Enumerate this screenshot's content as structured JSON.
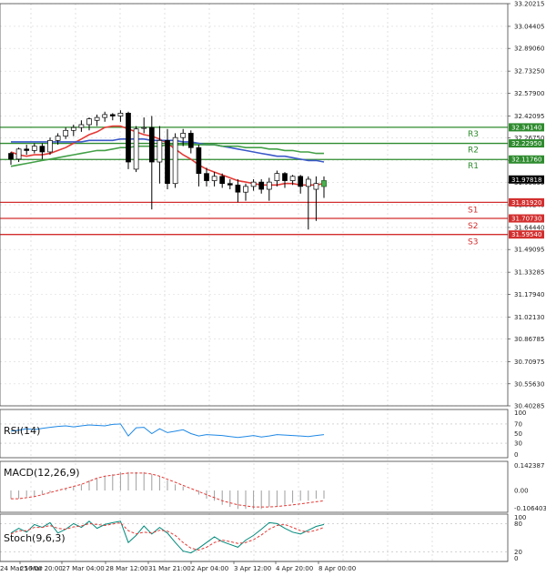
{
  "chart_data": {
    "type": "candlestick",
    "main": {
      "y_ticks": [
        "33.20215",
        "33.04405",
        "32.89060",
        "32.73250",
        "32.57900",
        "32.42095",
        "32.26750",
        "32.11240",
        "31.95895",
        "31.80240",
        "31.64440",
        "31.49095",
        "31.33285",
        "31.17940",
        "31.02130",
        "30.86785",
        "30.70975",
        "30.55630",
        "30.40285"
      ],
      "ylim": [
        30.40285,
        33.20215
      ],
      "x_labels": [
        "24 Mar 16:00",
        "25 Mar 20:00",
        "27 Mar 04:00",
        "28 Mar 12:00",
        "31 Mar 21:00",
        "2 Apr 04:00",
        "3 Apr 12:00",
        "4 Apr 20:00",
        "8 Apr 00:00"
      ],
      "current_price": "31.97818",
      "candles": [
        [
          32.16,
          32.17,
          32.08,
          32.12
        ],
        [
          32.12,
          32.2,
          32.1,
          32.19
        ],
        [
          32.19,
          32.22,
          32.15,
          32.18
        ],
        [
          32.18,
          32.23,
          32.16,
          32.21
        ],
        [
          32.21,
          32.23,
          32.12,
          32.17
        ],
        [
          32.17,
          32.27,
          32.15,
          32.25
        ],
        [
          32.25,
          32.3,
          32.22,
          32.28
        ],
        [
          32.28,
          32.34,
          32.26,
          32.32
        ],
        [
          32.32,
          32.36,
          32.28,
          32.34
        ],
        [
          32.34,
          32.39,
          32.31,
          32.36
        ],
        [
          32.36,
          32.41,
          32.32,
          32.4
        ],
        [
          32.39,
          32.43,
          32.35,
          32.41
        ],
        [
          32.41,
          32.45,
          32.38,
          32.43
        ],
        [
          32.43,
          32.44,
          32.39,
          32.42
        ],
        [
          32.42,
          32.46,
          32.38,
          32.44
        ],
        [
          32.44,
          32.45,
          32.05,
          32.1
        ],
        [
          32.05,
          32.35,
          32.03,
          32.33
        ],
        [
          32.34,
          32.41,
          32.3,
          32.34
        ],
        [
          32.34,
          32.42,
          31.77,
          32.1
        ],
        [
          32.1,
          32.35,
          31.95,
          32.25
        ],
        [
          32.25,
          32.33,
          31.91,
          31.95
        ],
        [
          31.95,
          32.3,
          31.92,
          32.27
        ],
        [
          32.27,
          32.33,
          32.21,
          32.3
        ],
        [
          32.3,
          32.32,
          32.16,
          32.2
        ],
        [
          32.2,
          32.22,
          31.93,
          32.02
        ],
        [
          32.02,
          32.06,
          31.93,
          31.97
        ],
        [
          31.97,
          32.03,
          31.93,
          32.0
        ],
        [
          32.0,
          32.02,
          31.92,
          31.95
        ],
        [
          31.95,
          31.98,
          31.91,
          31.94
        ],
        [
          31.94,
          31.98,
          31.82,
          31.89
        ],
        [
          31.89,
          31.95,
          31.83,
          31.93
        ],
        [
          31.93,
          31.98,
          31.9,
          31.96
        ],
        [
          31.96,
          31.98,
          31.88,
          31.91
        ],
        [
          31.91,
          31.99,
          31.83,
          31.96
        ],
        [
          31.97,
          32.04,
          31.93,
          32.02
        ],
        [
          32.02,
          32.03,
          31.92,
          31.97
        ],
        [
          31.97,
          32.01,
          31.94,
          32.0
        ],
        [
          32.0,
          32.01,
          31.88,
          31.93
        ],
        [
          31.93,
          32.0,
          31.63,
          31.98
        ],
        [
          31.91,
          32.0,
          31.69,
          31.95
        ],
        [
          31.93,
          32.0,
          31.85,
          31.97
        ]
      ],
      "moving_averages": [
        {
          "name": "red",
          "color": "#e53935",
          "values": [
            32.17,
            32.15,
            32.14,
            32.15,
            32.15,
            32.16,
            32.18,
            32.2,
            32.23,
            32.26,
            32.29,
            32.31,
            32.34,
            32.35,
            32.35,
            32.33,
            32.31,
            32.29,
            32.28,
            32.26,
            32.23,
            32.19,
            32.15,
            32.12,
            32.08,
            32.05,
            32.03,
            32.01,
            31.99,
            31.97,
            31.96,
            31.95,
            31.94,
            31.94,
            31.94,
            31.95,
            31.95,
            31.94,
            31.94,
            31.94,
            31.95
          ]
        },
        {
          "name": "blue",
          "color": "#3b59c9",
          "values": [
            32.24,
            32.24,
            32.24,
            32.24,
            32.24,
            32.24,
            32.24,
            32.24,
            32.24,
            32.24,
            32.25,
            32.25,
            32.25,
            32.25,
            32.26,
            32.26,
            32.26,
            32.26,
            32.25,
            32.25,
            32.25,
            32.25,
            32.24,
            32.24,
            32.23,
            32.22,
            32.22,
            32.21,
            32.2,
            32.19,
            32.18,
            32.17,
            32.16,
            32.15,
            32.14,
            32.14,
            32.13,
            32.12,
            32.11,
            32.11,
            32.1
          ]
        },
        {
          "name": "green",
          "color": "#43a047",
          "values": [
            32.07,
            32.08,
            32.09,
            32.1,
            32.11,
            32.12,
            32.13,
            32.14,
            32.15,
            32.16,
            32.17,
            32.18,
            32.18,
            32.19,
            32.2,
            32.2,
            32.21,
            32.21,
            32.21,
            32.21,
            32.22,
            32.22,
            32.22,
            32.22,
            32.22,
            32.22,
            32.22,
            32.21,
            32.21,
            32.21,
            32.2,
            32.2,
            32.2,
            32.19,
            32.19,
            32.18,
            32.18,
            32.17,
            32.17,
            32.16,
            32.16
          ]
        }
      ],
      "levels": [
        {
          "name": "R3",
          "value": "32.34140",
          "v": 32.3414,
          "color": "#2e8b2e"
        },
        {
          "name": "R2",
          "value": "32.22950",
          "v": 32.2295,
          "color": "#2e8b2e"
        },
        {
          "name": "R1",
          "value": "32.11760",
          "v": 32.1176,
          "color": "#2e8b2e"
        },
        {
          "name": "S1",
          "value": "31.81920",
          "v": 31.8192,
          "color": "#d32f2f"
        },
        {
          "name": "S2",
          "value": "31.70730",
          "v": 31.7073,
          "color": "#d32f2f"
        },
        {
          "name": "S3",
          "value": "31.59540",
          "v": 31.5954,
          "color": "#d32f2f"
        }
      ]
    },
    "rsi": {
      "title": "RSI(14)",
      "y_ticks": [
        "100",
        "70",
        "50",
        "30",
        "0"
      ],
      "values": [
        55,
        57,
        60,
        58,
        61,
        63,
        65,
        66,
        64,
        66,
        68,
        67,
        66,
        69,
        70,
        45,
        62,
        63,
        50,
        60,
        52,
        55,
        58,
        50,
        45,
        48,
        47,
        46,
        44,
        42,
        44,
        46,
        43,
        45,
        48,
        47,
        46,
        45,
        44,
        46,
        48
      ]
    },
    "macd": {
      "title": "MACD(12,26,9)",
      "y_ticks": [
        "0.142387",
        "0.00",
        "-0.106403"
      ],
      "hist": [
        -0.04,
        -0.04,
        -0.03,
        -0.03,
        -0.02,
        -0.01,
        0.0,
        0.01,
        0.02,
        0.03,
        0.05,
        0.06,
        0.07,
        0.08,
        0.09,
        0.09,
        0.09,
        0.09,
        0.08,
        0.07,
        0.05,
        0.03,
        0.02,
        0.0,
        -0.02,
        -0.04,
        -0.05,
        -0.07,
        -0.08,
        -0.09,
        -0.09,
        -0.09,
        -0.09,
        -0.08,
        -0.08,
        -0.07,
        -0.06,
        -0.05,
        -0.05,
        -0.04,
        -0.04
      ],
      "signal": [
        -0.04,
        -0.04,
        -0.035,
        -0.03,
        -0.02,
        -0.01,
        0.0,
        0.01,
        0.02,
        0.03,
        0.045,
        0.06,
        0.07,
        0.075,
        0.08,
        0.085,
        0.085,
        0.085,
        0.08,
        0.07,
        0.055,
        0.04,
        0.025,
        0.01,
        -0.005,
        -0.02,
        -0.035,
        -0.05,
        -0.06,
        -0.07,
        -0.075,
        -0.08,
        -0.08,
        -0.08,
        -0.078,
        -0.074,
        -0.07,
        -0.065,
        -0.06,
        -0.055,
        -0.05
      ]
    },
    "stoch": {
      "title": "Stoch(9,6,3)",
      "y_ticks": [
        "100",
        "80",
        "20",
        "0"
      ],
      "main": [
        60,
        70,
        62,
        78,
        72,
        82,
        60,
        68,
        80,
        72,
        85,
        70,
        78,
        82,
        85,
        40,
        55,
        75,
        58,
        72,
        60,
        40,
        22,
        18,
        28,
        40,
        52,
        42,
        36,
        30,
        45,
        55,
        68,
        82,
        80,
        70,
        62,
        58,
        66,
        74,
        78
      ],
      "signal": [
        58,
        65,
        65,
        72,
        72,
        76,
        70,
        68,
        73,
        75,
        80,
        78,
        76,
        79,
        82,
        65,
        58,
        62,
        60,
        66,
        64,
        55,
        40,
        28,
        24,
        30,
        40,
        45,
        42,
        38,
        40,
        46,
        56,
        68,
        76,
        78,
        72,
        65,
        62,
        66,
        72
      ]
    }
  }
}
